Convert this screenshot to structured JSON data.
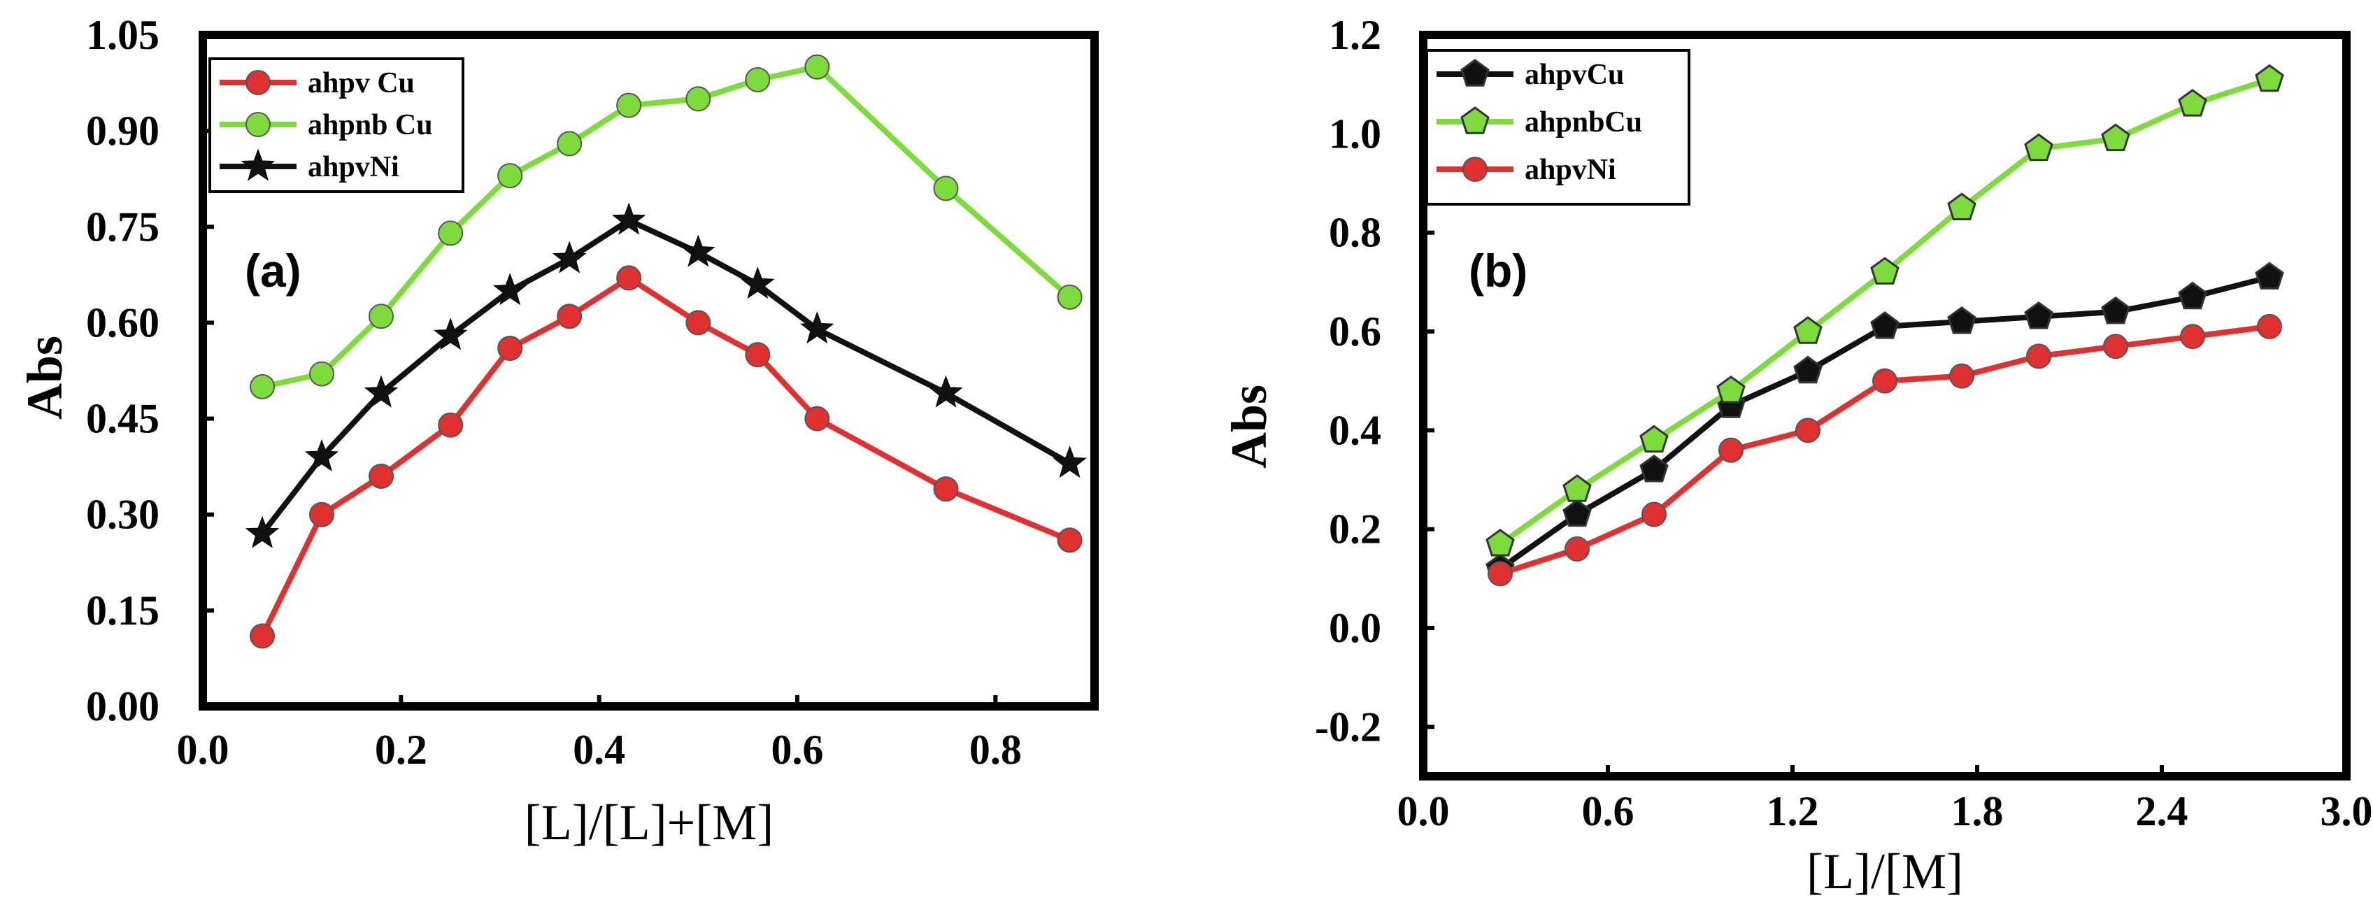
{
  "colors": {
    "red": "#e03030",
    "green": "#7ddc3c",
    "black": "#111111"
  },
  "chart_data": [
    {
      "type": "line",
      "label": "(a)",
      "xlabel": "[L]/[L]+[M]",
      "ylabel": "Abs",
      "xlim": [
        0.0,
        0.9
      ],
      "ylim": [
        0.0,
        1.05
      ],
      "xticks": [
        "0.0",
        "0.2",
        "0.4",
        "0.6",
        "0.8"
      ],
      "xtick_values": [
        0.0,
        0.2,
        0.4,
        0.6,
        0.8
      ],
      "yticks": [
        "0.00",
        "0.15",
        "0.30",
        "0.45",
        "0.60",
        "0.75",
        "0.90",
        "1.05"
      ],
      "ytick_values": [
        0.0,
        0.15,
        0.3,
        0.45,
        0.6,
        0.75,
        0.9,
        1.05
      ],
      "legend_position": "top-left",
      "series": [
        {
          "name": "ahpv Cu",
          "color": "#e03030",
          "marker": "circle",
          "x": [
            0.06,
            0.12,
            0.18,
            0.25,
            0.31,
            0.37,
            0.43,
            0.5,
            0.56,
            0.62,
            0.75,
            0.875
          ],
          "y": [
            0.11,
            0.3,
            0.36,
            0.44,
            0.56,
            0.61,
            0.67,
            0.6,
            0.55,
            0.45,
            0.34,
            0.26
          ]
        },
        {
          "name": "ahpnb Cu",
          "color": "#7ddc3c",
          "marker": "circle",
          "x": [
            0.06,
            0.12,
            0.18,
            0.25,
            0.31,
            0.37,
            0.43,
            0.5,
            0.56,
            0.62,
            0.75,
            0.875
          ],
          "y": [
            0.5,
            0.52,
            0.61,
            0.74,
            0.83,
            0.88,
            0.94,
            0.95,
            0.98,
            1.0,
            0.81,
            0.64
          ]
        },
        {
          "name": "ahpvNi",
          "color": "#111111",
          "marker": "star",
          "x": [
            0.06,
            0.12,
            0.18,
            0.25,
            0.31,
            0.37,
            0.43,
            0.5,
            0.56,
            0.62,
            0.75,
            0.875
          ],
          "y": [
            0.27,
            0.39,
            0.49,
            0.58,
            0.65,
            0.7,
            0.76,
            0.71,
            0.66,
            0.59,
            0.49,
            0.38
          ]
        }
      ]
    },
    {
      "type": "line",
      "label": "(b)",
      "xlabel": "[L]/[M]",
      "ylabel": "Abs",
      "xlim": [
        0.0,
        3.0
      ],
      "ylim": [
        -0.3,
        1.2
      ],
      "xticks": [
        "0.0",
        "0.6",
        "1.2",
        "1.8",
        "2.4",
        "3.0"
      ],
      "xtick_values": [
        0.0,
        0.6,
        1.2,
        1.8,
        2.4,
        3.0
      ],
      "yticks": [
        "-0.2",
        "0.0",
        "0.2",
        "0.4",
        "0.6",
        "0.8",
        "1.0",
        "1.2"
      ],
      "ytick_values": [
        -0.2,
        0.0,
        0.2,
        0.4,
        0.6,
        0.8,
        1.0,
        1.2
      ],
      "legend_position": "top-left",
      "series": [
        {
          "name": "ahpvCu",
          "color": "#111111",
          "marker": "pentagon",
          "x": [
            0.25,
            0.5,
            0.75,
            1.0,
            1.25,
            1.5,
            1.75,
            2.0,
            2.25,
            2.5,
            2.75
          ],
          "y": [
            0.12,
            0.23,
            0.32,
            0.45,
            0.52,
            0.61,
            0.62,
            0.63,
            0.64,
            0.67,
            0.71
          ]
        },
        {
          "name": "ahpnbCu",
          "color": "#7ddc3c",
          "marker": "pentagon",
          "x": [
            0.25,
            0.5,
            0.75,
            1.0,
            1.25,
            1.5,
            1.75,
            2.0,
            2.25,
            2.5,
            2.75
          ],
          "y": [
            0.17,
            0.28,
            0.38,
            0.48,
            0.6,
            0.72,
            0.85,
            0.97,
            0.99,
            1.06,
            1.11
          ]
        },
        {
          "name": "ahpvNi",
          "color": "#e03030",
          "marker": "circle",
          "x": [
            0.25,
            0.5,
            0.75,
            1.0,
            1.25,
            1.5,
            1.75,
            2.0,
            2.25,
            2.5,
            2.75
          ],
          "y": [
            0.11,
            0.16,
            0.23,
            0.36,
            0.4,
            0.5,
            0.51,
            0.55,
            0.57,
            0.59,
            0.61
          ]
        }
      ]
    }
  ]
}
